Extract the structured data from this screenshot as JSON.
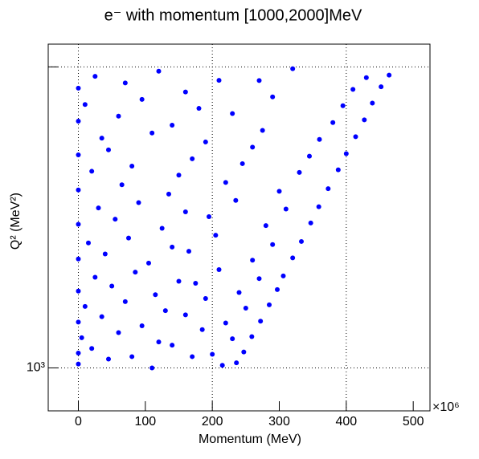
{
  "chart_data": {
    "type": "scatter",
    "title": "e⁻ with momentum [1000,2000]MeV",
    "x_label": "Momentum (MeV)",
    "x_multiplier": "×10⁶",
    "y_label": "Q² (MeV²)",
    "xlim": [
      -45,
      525
    ],
    "ylim": [
      720,
      11900
    ],
    "y_log": true,
    "xticks": [
      0,
      100,
      200,
      300,
      400,
      500
    ],
    "xgrid": [
      0,
      200,
      400
    ],
    "yticks": [
      {
        "value": 1000,
        "label": "10³"
      },
      {
        "value": 10000,
        "label": null
      }
    ],
    "grid": true,
    "series": [
      {
        "color": "#0000ff",
        "x": [
          0,
          45,
          110,
          170,
          215,
          236,
          0,
          20,
          80,
          140,
          200,
          247,
          5,
          60,
          120,
          185,
          230,
          259,
          0,
          35,
          95,
          160,
          220,
          272,
          10,
          70,
          130,
          190,
          250,
          285,
          0,
          50,
          115,
          175,
          240,
          297,
          25,
          85,
          150,
          210,
          270,
          306,
          0,
          40,
          105,
          165,
          260,
          320,
          15,
          75,
          140,
          205,
          290,
          333,
          0,
          55,
          125,
          195,
          280,
          347,
          30,
          90,
          160,
          235,
          310,
          359,
          0,
          65,
          135,
          220,
          300,
          373,
          20,
          80,
          150,
          245,
          330,
          388,
          0,
          45,
          170,
          260,
          345,
          400,
          35,
          110,
          190,
          275,
          360,
          414,
          0,
          60,
          140,
          230,
          380,
          427,
          10,
          95,
          180,
          290,
          395,
          439,
          0,
          70,
          160,
          270,
          410,
          452,
          25,
          120,
          210,
          320,
          430,
          464
        ],
        "values": [
          1030,
          1070,
          1000,
          1090,
          1020,
          1040,
          1120,
          1160,
          1090,
          1190,
          1110,
          1130,
          1260,
          1310,
          1220,
          1340,
          1250,
          1270,
          1420,
          1480,
          1380,
          1500,
          1410,
          1430,
          1600,
          1660,
          1550,
          1700,
          1580,
          1620,
          1800,
          1870,
          1750,
          1910,
          1780,
          1820,
          2000,
          2080,
          1940,
          2120,
          1980,
          2020,
          2300,
          2390,
          2230,
          2440,
          2280,
          2320,
          2600,
          2700,
          2520,
          2760,
          2570,
          2630,
          3000,
          3120,
          2910,
          3180,
          2970,
          3030,
          3400,
          3540,
          3300,
          3600,
          3370,
          3430,
          3900,
          4060,
          3780,
          4130,
          3860,
          3940,
          4500,
          4680,
          4370,
          4770,
          4460,
          4550,
          5100,
          5300,
          4950,
          5410,
          5050,
          5150,
          5800,
          6030,
          5630,
          6150,
          5740,
          5860,
          6600,
          6860,
          6400,
          7000,
          6530,
          6670,
          7500,
          7800,
          7280,
          7950,
          7430,
          7580,
          8500,
          8840,
          8250,
          9010,
          8420,
          8590,
          9300,
          9670,
          9020,
          9860,
          9210,
          9390
        ]
      }
    ]
  }
}
